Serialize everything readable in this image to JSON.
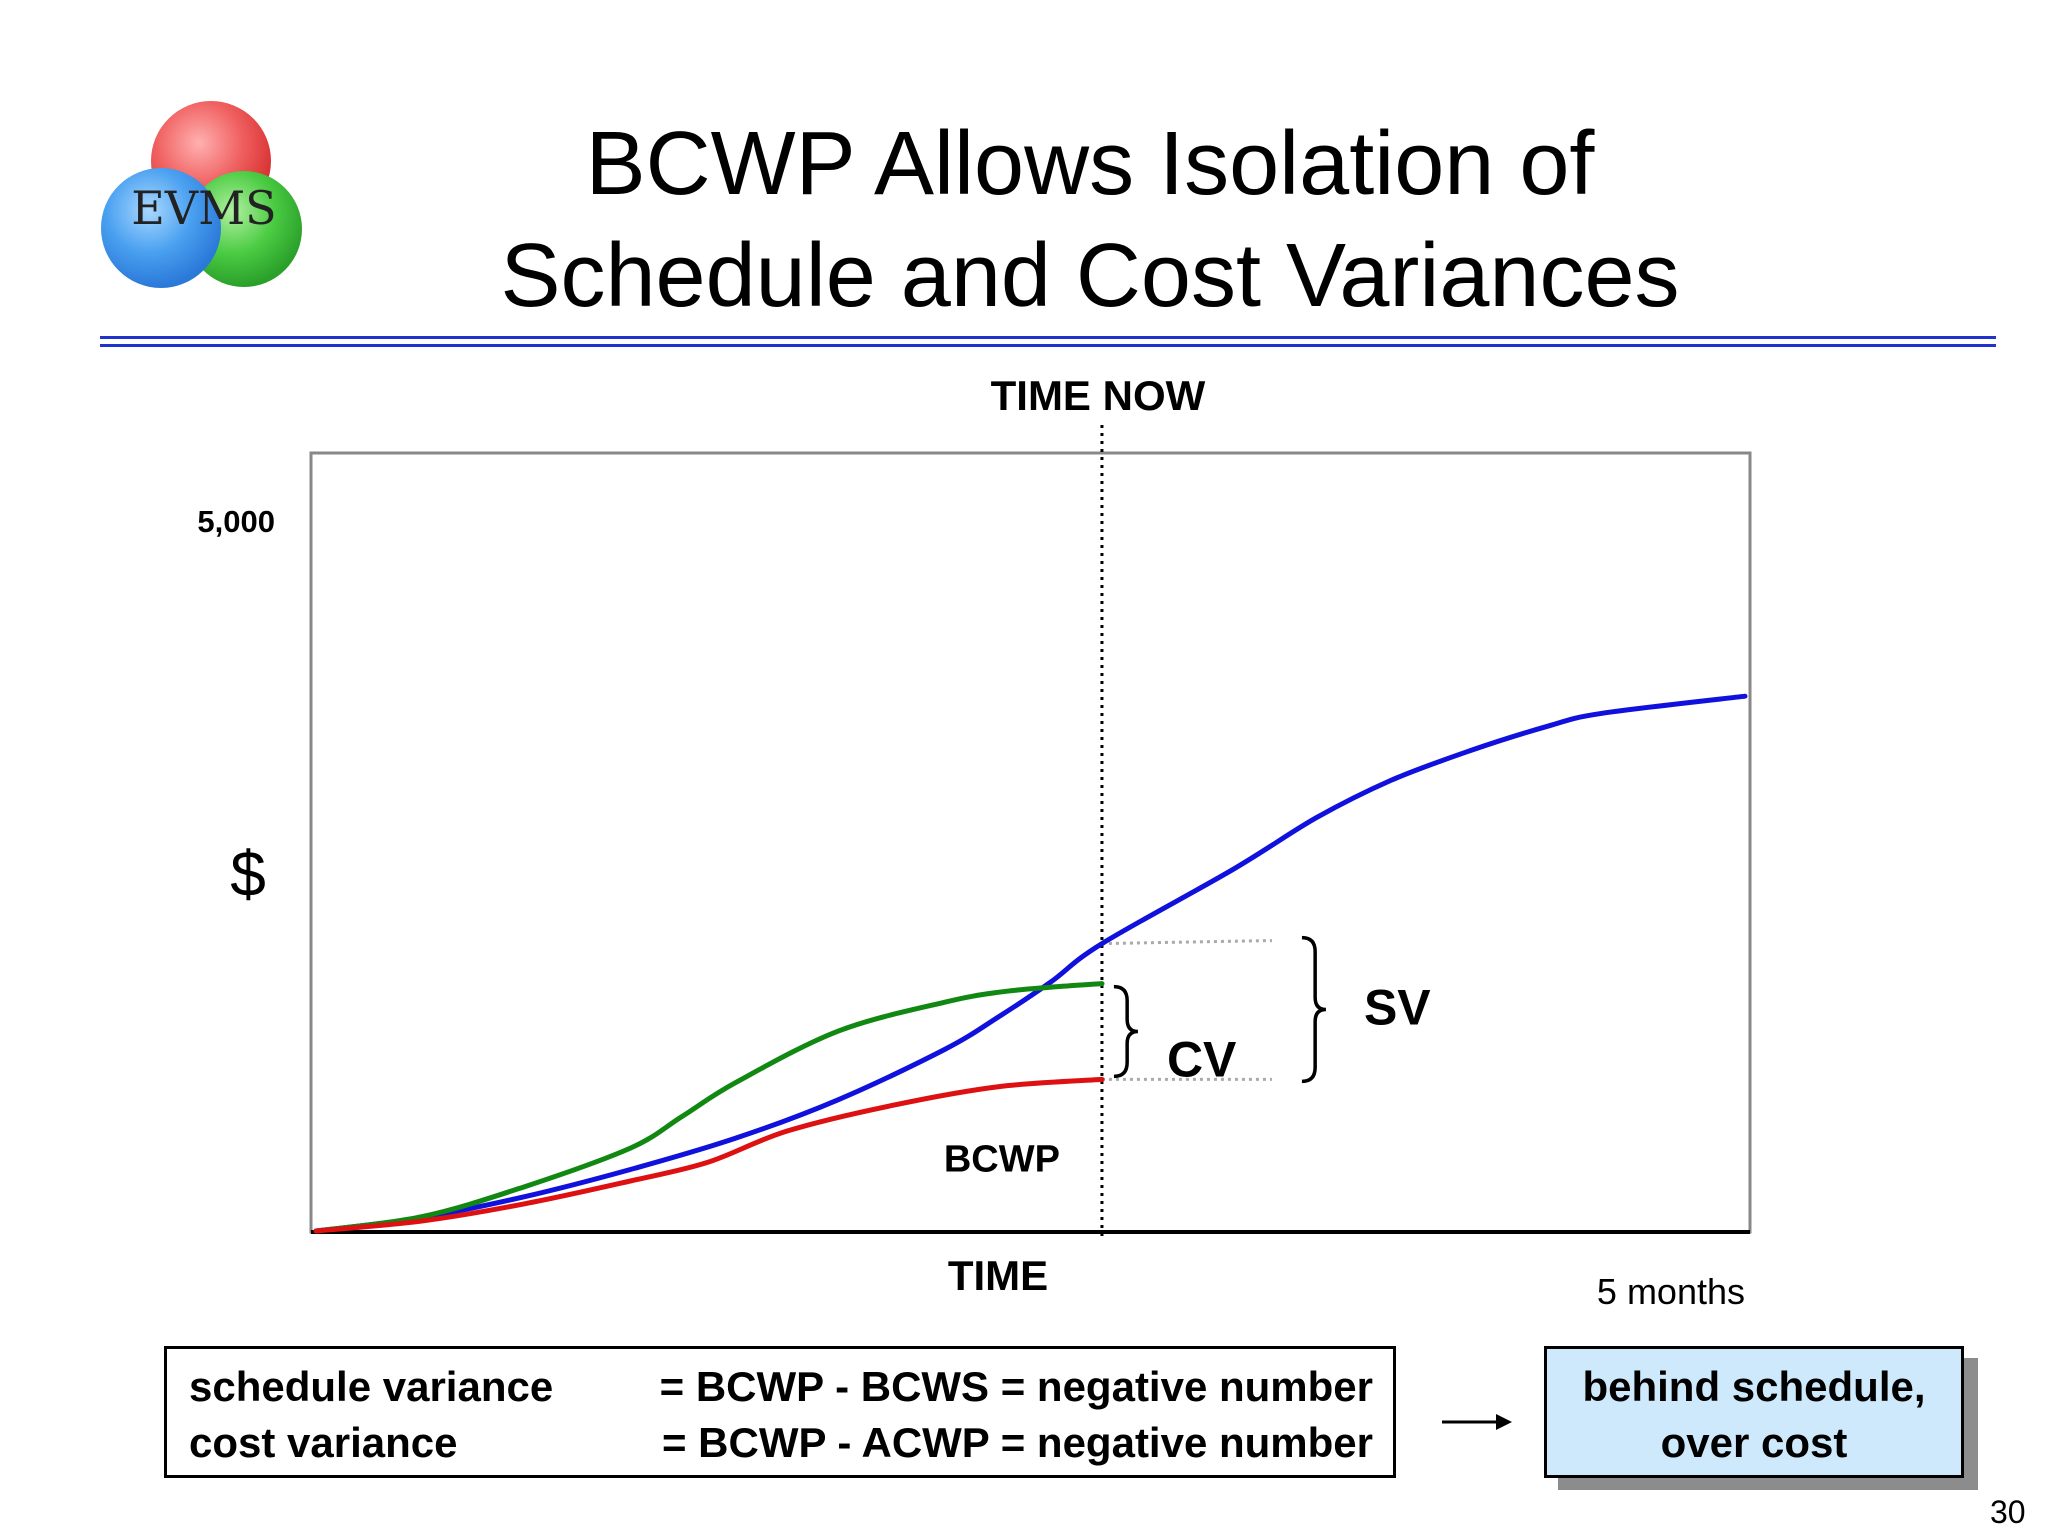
{
  "slide": {
    "title_line1": "BCWP Allows Isolation of",
    "title_line2": "Schedule and Cost Variances",
    "logo_text": "EVMS",
    "page_number": "30",
    "formula": {
      "line1_lhs": "schedule variance",
      "line1_rhs": "= BCWP - BCWS = negative number",
      "line2_lhs": "cost variance",
      "line2_rhs": "= BCWP - ACWP = negative number"
    },
    "result": {
      "line1": "behind schedule,",
      "line2": "over cost"
    },
    "colors": {
      "rule": "#2233cc",
      "result_fill": "#cde9fb"
    }
  },
  "chart_data": {
    "type": "line",
    "title": "",
    "xlabel": "TIME",
    "ylabel": "$",
    "xlim": [
      0,
      5
    ],
    "ylim": [
      0,
      5000
    ],
    "y_tick_label": "5,000",
    "x_end_label": "5 months",
    "time_now_label": "TIME NOW",
    "time_now_x": 2.75,
    "series": [
      {
        "color": "#1111dd",
        "points": [
          [
            0,
            0
          ],
          [
            0.36,
            90
          ],
          [
            0.73,
            240
          ],
          [
            1.1,
            430
          ],
          [
            1.47,
            650
          ],
          [
            1.83,
            920
          ],
          [
            2.2,
            1270
          ],
          [
            2.39,
            1500
          ],
          [
            2.57,
            1740
          ],
          [
            2.75,
            2010
          ],
          [
            3.21,
            2530
          ],
          [
            3.5,
            2890
          ],
          [
            3.76,
            3150
          ],
          [
            4.04,
            3360
          ],
          [
            4.31,
            3530
          ],
          [
            4.5,
            3620
          ],
          [
            5.0,
            3740
          ]
        ]
      },
      {
        "color": "#118811",
        "points": [
          [
            0,
            0
          ],
          [
            0.37,
            100
          ],
          [
            0.73,
            310
          ],
          [
            1.1,
            580
          ],
          [
            1.28,
            800
          ],
          [
            1.47,
            1040
          ],
          [
            1.83,
            1400
          ],
          [
            2.2,
            1600
          ],
          [
            2.39,
            1670
          ],
          [
            2.57,
            1705
          ],
          [
            2.75,
            1730
          ]
        ]
      },
      {
        "name": "BCWP",
        "color": "#dd1111",
        "points": [
          [
            0,
            0
          ],
          [
            0.37,
            70
          ],
          [
            0.73,
            190
          ],
          [
            1.1,
            350
          ],
          [
            1.37,
            480
          ],
          [
            1.65,
            700
          ],
          [
            2.02,
            880
          ],
          [
            2.39,
            1010
          ],
          [
            2.75,
            1060
          ]
        ]
      }
    ],
    "annotations": [
      {
        "label": "CV",
        "from_value": 1060,
        "to_value": 1730
      },
      {
        "label": "SV",
        "from_value": 1060,
        "to_value": 2010
      },
      {
        "label": "BCWP",
        "series": "red"
      }
    ]
  }
}
